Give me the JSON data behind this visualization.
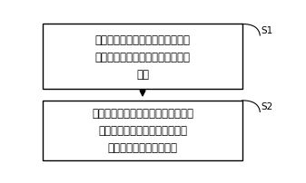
{
  "box1_lines": [
    "将含有稀土元素的物质掺杂至铪基",
    "材料中，形成稀土掺杂的铪基铁电",
    "材料"
  ],
  "box2_lines": [
    "在惰性气体中对稀土掺杂的铪基材料",
    "进行退火，得到经退火处理后的",
    "稀土掺杂的铪基铁电材料"
  ],
  "label1": "S1",
  "label2": "S2",
  "box_facecolor": "#ffffff",
  "box_edgecolor": "#000000",
  "background_color": "#ffffff",
  "text_color": "#000000",
  "font_size": 8.5,
  "label_font_size": 7.5
}
